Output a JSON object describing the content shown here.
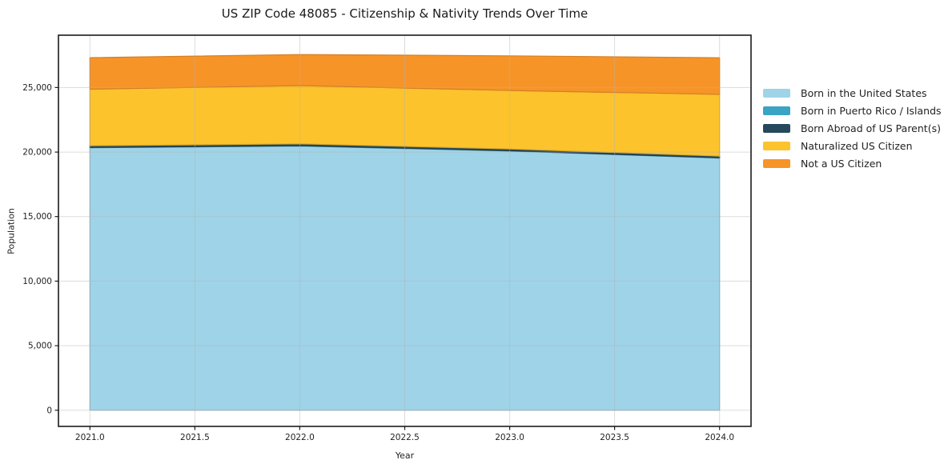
{
  "chart_data": {
    "type": "area",
    "stacked": true,
    "title": "US ZIP Code 48085 - Citizenship & Nativity Trends Over Time",
    "xlabel": "Year",
    "ylabel": "Population",
    "x": [
      2021,
      2022,
      2023,
      2024
    ],
    "series": [
      {
        "name": "Born in the United States",
        "color": "#9fd3e8",
        "values": [
          20330,
          20470,
          20080,
          19530
        ]
      },
      {
        "name": "Born in Puerto Rico / Islands",
        "color": "#3ba3c4",
        "values": [
          25,
          25,
          25,
          25
        ]
      },
      {
        "name": "Born Abroad of US Parent(s)",
        "color": "#26495c",
        "values": [
          140,
          140,
          135,
          130
        ]
      },
      {
        "name": "Naturalized US Citizen",
        "color": "#fcc32d",
        "values": [
          4370,
          4510,
          4530,
          4780
        ]
      },
      {
        "name": "Not a US Citizen",
        "color": "#f79428",
        "values": [
          2445,
          2405,
          2680,
          2835
        ]
      }
    ],
    "totals": [
      27310,
      27550,
      27450,
      27300
    ],
    "xlim": [
      2020.85,
      2024.15
    ],
    "ylim": [
      -1250,
      29050
    ],
    "xticks": [
      {
        "v": 2021.0,
        "label": "2021.0"
      },
      {
        "v": 2021.5,
        "label": "2021.5"
      },
      {
        "v": 2022.0,
        "label": "2022.0"
      },
      {
        "v": 2022.5,
        "label": "2022.5"
      },
      {
        "v": 2023.0,
        "label": "2023.0"
      },
      {
        "v": 2023.5,
        "label": "2023.5"
      },
      {
        "v": 2024.0,
        "label": "2024.0"
      }
    ],
    "yticks": [
      {
        "v": 0,
        "label": "0"
      },
      {
        "v": 5000,
        "label": "5,000"
      },
      {
        "v": 10000,
        "label": "10,000"
      },
      {
        "v": 15000,
        "label": "15,000"
      },
      {
        "v": 20000,
        "label": "20,000"
      },
      {
        "v": 25000,
        "label": "25,000"
      }
    ],
    "grid": true,
    "grid_color": "rgba(178,178,178,0.45)",
    "frame_color": "#1c1c1c",
    "legend_position": "right-outside"
  }
}
